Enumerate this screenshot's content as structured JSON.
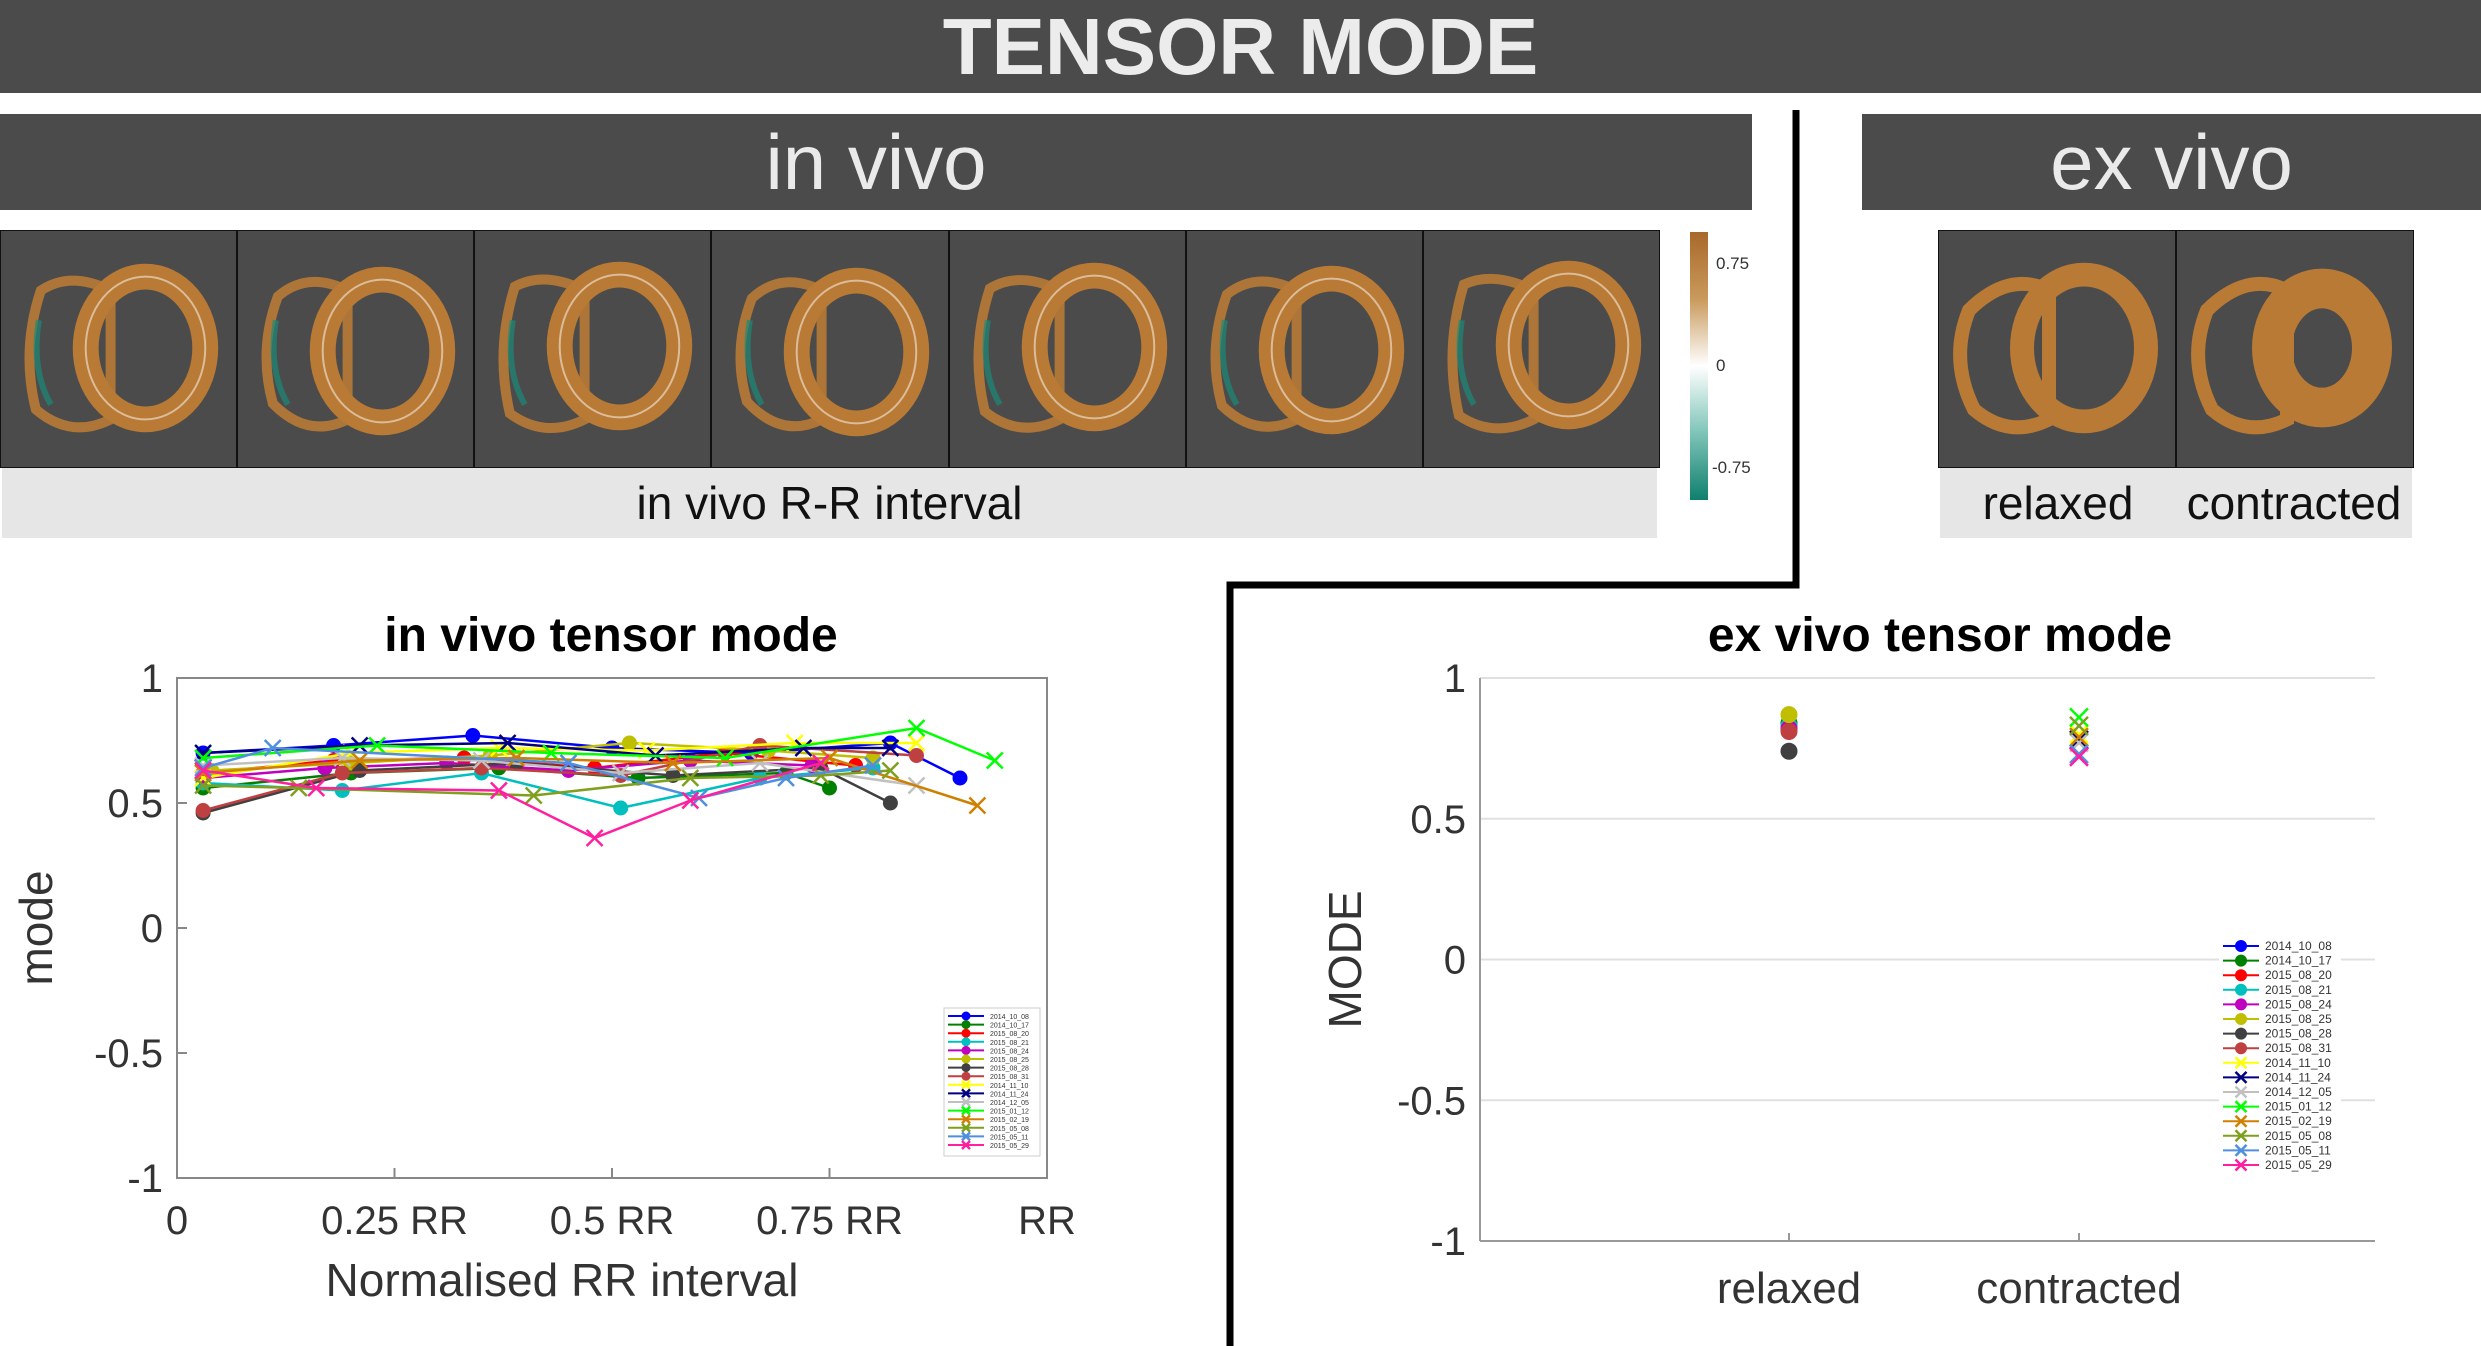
{
  "header": {
    "title": "TENSOR MODE",
    "invivo_title": "in vivo",
    "exvivo_title": "ex vivo"
  },
  "images": {
    "invivo_caption": "in vivo R-R interval",
    "exvivo_labels": [
      "relaxed",
      "contracted"
    ],
    "colorbar_ticks": [
      "0.75",
      "0",
      "-0.75"
    ],
    "colors": {
      "positive": "#b87a35",
      "neutral": "#ffffff",
      "negative": "#1a8a78",
      "background": "#4b4b4b"
    }
  },
  "chart_data": [
    {
      "type": "line",
      "title": "in vivo tensor mode",
      "xlabel": "Normalised RR interval",
      "ylabel": "mode",
      "xlim": [
        0,
        1
      ],
      "ylim": [
        -1,
        1
      ],
      "xticks": [
        0,
        0.25,
        0.5,
        0.75,
        1
      ],
      "xtick_labels": [
        "0",
        "0.25 RR",
        "0.5 RR",
        "0.75 RR",
        "RR"
      ],
      "yticks": [
        -1,
        -0.5,
        0,
        0.5,
        1
      ],
      "ytick_labels": [
        "-1",
        "-0.5",
        "0",
        "0.5",
        "1"
      ],
      "grid": false,
      "legend_position": "lower-right",
      "series": [
        {
          "name": "2014_10_08",
          "color": "#0000ff",
          "marker": "o",
          "x": [
            0.03,
            0.18,
            0.34,
            0.5,
            0.66,
            0.82,
            0.9
          ],
          "y": [
            0.7,
            0.73,
            0.77,
            0.72,
            0.7,
            0.74,
            0.6
          ]
        },
        {
          "name": "2014_10_17",
          "color": "#008000",
          "marker": "o",
          "x": [
            0.03,
            0.2,
            0.37,
            0.53,
            0.7,
            0.75
          ],
          "y": [
            0.56,
            0.62,
            0.64,
            0.6,
            0.62,
            0.56
          ]
        },
        {
          "name": "2015_08_20",
          "color": "#ff0000",
          "marker": "o",
          "x": [
            0.03,
            0.18,
            0.33,
            0.48,
            0.63,
            0.78
          ],
          "y": [
            0.62,
            0.67,
            0.68,
            0.64,
            0.7,
            0.65
          ]
        },
        {
          "name": "2015_08_21",
          "color": "#00bfbf",
          "marker": "o",
          "x": [
            0.03,
            0.19,
            0.35,
            0.51,
            0.67,
            0.8
          ],
          "y": [
            0.58,
            0.55,
            0.62,
            0.48,
            0.6,
            0.64
          ]
        },
        {
          "name": "2015_08_24",
          "color": "#bf00bf",
          "marker": "o",
          "x": [
            0.03,
            0.17,
            0.31,
            0.45,
            0.59,
            0.73
          ],
          "y": [
            0.6,
            0.64,
            0.66,
            0.63,
            0.67,
            0.65
          ]
        },
        {
          "name": "2015_08_25",
          "color": "#bfbf00",
          "marker": "o",
          "x": [
            0.04,
            0.2,
            0.36,
            0.52,
            0.68,
            0.8
          ],
          "y": [
            0.63,
            0.66,
            0.69,
            0.74,
            0.71,
            0.68
          ]
        },
        {
          "name": "2015_08_28",
          "color": "#404040",
          "marker": "o",
          "x": [
            0.03,
            0.21,
            0.39,
            0.57,
            0.74,
            0.82
          ],
          "y": [
            0.46,
            0.63,
            0.66,
            0.61,
            0.64,
            0.5
          ]
        },
        {
          "name": "2015_08_31",
          "color": "#bf4040",
          "marker": "o",
          "x": [
            0.03,
            0.19,
            0.35,
            0.51,
            0.67,
            0.85
          ],
          "y": [
            0.47,
            0.62,
            0.64,
            0.61,
            0.73,
            0.69
          ]
        },
        {
          "name": "2014_11_10",
          "color": "#ffff00",
          "marker": "x",
          "x": [
            0.03,
            0.2,
            0.37,
            0.54,
            0.71,
            0.85
          ],
          "y": [
            0.6,
            0.7,
            0.72,
            0.71,
            0.74,
            0.74
          ]
        },
        {
          "name": "2014_11_24",
          "color": "#000080",
          "marker": "x",
          "x": [
            0.03,
            0.21,
            0.38,
            0.55,
            0.72,
            0.82
          ],
          "y": [
            0.7,
            0.73,
            0.74,
            0.69,
            0.72,
            0.72
          ]
        },
        {
          "name": "2014_12_05",
          "color": "#c0c0c0",
          "marker": "x",
          "x": [
            0.03,
            0.19,
            0.35,
            0.51,
            0.67,
            0.85
          ],
          "y": [
            0.65,
            0.68,
            0.67,
            0.62,
            0.66,
            0.57
          ]
        },
        {
          "name": "2015_01_12",
          "color": "#00ff00",
          "marker": "x",
          "x": [
            0.03,
            0.23,
            0.43,
            0.63,
            0.85,
            0.94
          ],
          "y": [
            0.68,
            0.73,
            0.7,
            0.68,
            0.8,
            0.67
          ]
        },
        {
          "name": "2015_02_19",
          "color": "#d08000",
          "marker": "x",
          "x": [
            0.03,
            0.21,
            0.39,
            0.57,
            0.75,
            0.92
          ],
          "y": [
            0.62,
            0.67,
            0.68,
            0.66,
            0.68,
            0.49
          ]
        },
        {
          "name": "2015_05_08",
          "color": "#7f9f1f",
          "marker": "x",
          "x": [
            0.03,
            0.14,
            0.41,
            0.59,
            0.74,
            0.82
          ],
          "y": [
            0.57,
            0.56,
            0.53,
            0.6,
            0.61,
            0.63
          ]
        },
        {
          "name": "2015_05_11",
          "color": "#4f8fdf",
          "marker": "x",
          "x": [
            0.03,
            0.11,
            0.45,
            0.6,
            0.7,
            0.8
          ],
          "y": [
            0.64,
            0.72,
            0.66,
            0.52,
            0.6,
            0.65
          ]
        },
        {
          "name": "2015_05_29",
          "color": "#ff1f9f",
          "marker": "x",
          "x": [
            0.03,
            0.16,
            0.37,
            0.48,
            0.59,
            0.74
          ],
          "y": [
            0.63,
            0.56,
            0.55,
            0.36,
            0.51,
            0.66
          ]
        }
      ]
    },
    {
      "type": "scatter",
      "title": "ex vivo tensor mode",
      "xlabel": "",
      "ylabel": "MODE",
      "categories": [
        "relaxed",
        "contracted"
      ],
      "ylim": [
        -1,
        1
      ],
      "yticks": [
        -1,
        -0.5,
        0,
        0.5,
        1
      ],
      "ytick_labels": [
        "-1",
        "-0.5",
        "0",
        "0.5",
        "1"
      ],
      "grid": true,
      "legend_position": "lower-right",
      "series": [
        {
          "name": "2014_10_08",
          "color": "#0000ff",
          "marker": "o",
          "values": [
            0.83,
            null
          ]
        },
        {
          "name": "2014_10_17",
          "color": "#008000",
          "marker": "o",
          "values": [
            0.84,
            null
          ]
        },
        {
          "name": "2015_08_20",
          "color": "#ff0000",
          "marker": "o",
          "values": [
            0.82,
            null
          ]
        },
        {
          "name": "2015_08_21",
          "color": "#00bfbf",
          "marker": "o",
          "values": [
            0.83,
            null
          ]
        },
        {
          "name": "2015_08_24",
          "color": "#bf00bf",
          "marker": "o",
          "values": [
            0.82,
            null
          ]
        },
        {
          "name": "2015_08_25",
          "color": "#bfbf00",
          "marker": "o",
          "values": [
            0.87,
            null
          ]
        },
        {
          "name": "2015_08_28",
          "color": "#404040",
          "marker": "o",
          "values": [
            0.74,
            null
          ]
        },
        {
          "name": "2015_08_31",
          "color": "#bf4040",
          "marker": "o",
          "values": [
            0.81,
            null
          ]
        },
        {
          "name": "2014_11_10",
          "color": "#ffff00",
          "marker": "x",
          "values": [
            null,
            0.8
          ]
        },
        {
          "name": "2014_11_24",
          "color": "#000080",
          "marker": "x",
          "values": [
            null,
            0.78
          ]
        },
        {
          "name": "2014_12_05",
          "color": "#c0c0c0",
          "marker": "x",
          "values": [
            null,
            0.77
          ]
        },
        {
          "name": "2015_01_12",
          "color": "#00ff00",
          "marker": "x",
          "values": [
            null,
            0.86
          ]
        },
        {
          "name": "2015_02_19",
          "color": "#d08000",
          "marker": "x",
          "values": [
            null,
            0.79
          ]
        },
        {
          "name": "2015_05_08",
          "color": "#7f9f1f",
          "marker": "x",
          "values": [
            null,
            0.83
          ]
        },
        {
          "name": "2015_05_11",
          "color": "#4f8fdf",
          "marker": "x",
          "values": [
            null,
            0.73
          ]
        },
        {
          "name": "2015_05_29",
          "color": "#ff1f9f",
          "marker": "x",
          "values": [
            null,
            0.72
          ]
        }
      ]
    }
  ]
}
